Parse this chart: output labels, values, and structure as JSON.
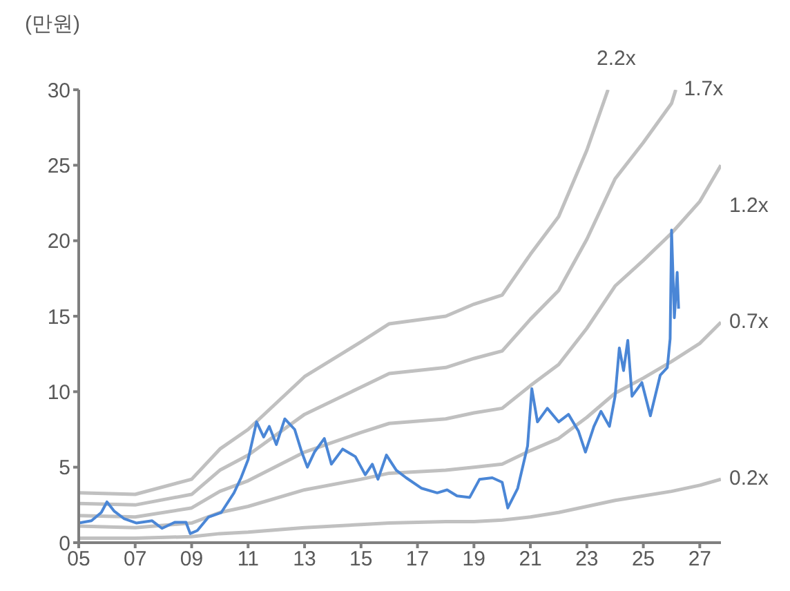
{
  "chart_data": {
    "type": "line",
    "ylabel": "(만원)",
    "xlim": [
      2005,
      2027.75
    ],
    "xticks": [
      {
        "value": 2005,
        "label": "05"
      },
      {
        "value": 2007,
        "label": "07"
      },
      {
        "value": 2009,
        "label": "09"
      },
      {
        "value": 2011,
        "label": "11"
      },
      {
        "value": 2013,
        "label": "13"
      },
      {
        "value": 2015,
        "label": "15"
      },
      {
        "value": 2017,
        "label": "17"
      },
      {
        "value": 2019,
        "label": "19"
      },
      {
        "value": 2021,
        "label": "21"
      },
      {
        "value": 2023,
        "label": "23"
      },
      {
        "value": 2025,
        "label": "25"
      },
      {
        "value": 2027,
        "label": "27"
      }
    ],
    "ylim": [
      0,
      30
    ],
    "yticks": [
      0,
      5,
      10,
      15,
      20,
      25,
      30
    ],
    "grid": false,
    "legend": false,
    "marker": "none",
    "line_style": "solid",
    "series": [
      {
        "name": "2.2x",
        "color": "#c0c0c0",
        "x": [
          2005,
          2007,
          2009,
          2010,
          2011,
          2013,
          2015,
          2016,
          2018,
          2019,
          2020,
          2021,
          2022,
          2023,
          2023.75
        ],
        "values": [
          3.3,
          3.2,
          4.2,
          6.2,
          7.5,
          11.0,
          13.3,
          14.5,
          15.0,
          15.8,
          16.4,
          19.1,
          21.6,
          26.0,
          30
        ]
      },
      {
        "name": "1.7x",
        "color": "#c0c0c0",
        "x": [
          2005,
          2007,
          2009,
          2010,
          2011,
          2013,
          2015,
          2016,
          2018,
          2019,
          2020,
          2021,
          2022,
          2023,
          2024,
          2025,
          2026,
          2026.15
        ],
        "values": [
          2.6,
          2.5,
          3.2,
          4.8,
          5.8,
          8.5,
          10.3,
          11.2,
          11.6,
          12.2,
          12.7,
          14.8,
          16.7,
          20.1,
          24.1,
          26.5,
          29.1,
          30
        ]
      },
      {
        "name": "1.2x",
        "color": "#c0c0c0",
        "x": [
          2005,
          2007,
          2009,
          2010,
          2011,
          2013,
          2015,
          2016,
          2018,
          2019,
          2020,
          2021,
          2022,
          2023,
          2024,
          2025,
          2026,
          2027,
          2027.75
        ],
        "values": [
          1.8,
          1.7,
          2.3,
          3.4,
          4.1,
          6.0,
          7.3,
          7.9,
          8.2,
          8.6,
          8.9,
          10.4,
          11.8,
          14.2,
          17.0,
          18.7,
          20.5,
          22.6,
          25.0
        ]
      },
      {
        "name": "0.7x",
        "color": "#c0c0c0",
        "x": [
          2005,
          2007,
          2009,
          2010,
          2011,
          2013,
          2015,
          2016,
          2018,
          2019,
          2020,
          2021,
          2022,
          2023,
          2024,
          2025,
          2026,
          2027,
          2027.75
        ],
        "values": [
          1.1,
          1.0,
          1.3,
          2.0,
          2.4,
          3.5,
          4.2,
          4.6,
          4.8,
          5.0,
          5.2,
          6.1,
          6.9,
          8.3,
          9.9,
          10.9,
          12.0,
          13.2,
          14.6
        ]
      },
      {
        "name": "0.2x",
        "color": "#c0c0c0",
        "x": [
          2005,
          2007,
          2009,
          2010,
          2011,
          2013,
          2015,
          2016,
          2018,
          2019,
          2020,
          2021,
          2022,
          2023,
          2024,
          2025,
          2026,
          2027,
          2027.75
        ],
        "values": [
          0.3,
          0.3,
          0.4,
          0.6,
          0.7,
          1.0,
          1.2,
          1.3,
          1.4,
          1.4,
          1.5,
          1.7,
          2.0,
          2.4,
          2.8,
          3.1,
          3.4,
          3.8,
          4.2
        ]
      },
      {
        "color": "#4a86d6",
        "x": [
          2005.0,
          2005.45,
          2005.8,
          2006.0,
          2006.25,
          2006.6,
          2007.05,
          2007.6,
          2007.95,
          2008.4,
          2008.8,
          2008.95,
          2009.2,
          2009.6,
          2010.05,
          2010.5,
          2010.75,
          2011.0,
          2011.3,
          2011.55,
          2011.75,
          2012.0,
          2012.3,
          2012.65,
          2012.9,
          2013.1,
          2013.35,
          2013.7,
          2013.95,
          2014.35,
          2014.8,
          2015.15,
          2015.4,
          2015.6,
          2015.9,
          2016.25,
          2016.6,
          2017.15,
          2017.7,
          2018.05,
          2018.4,
          2018.85,
          2019.2,
          2019.65,
          2020.0,
          2020.2,
          2020.55,
          2020.9,
          2021.05,
          2021.25,
          2021.6,
          2022.0,
          2022.35,
          2022.7,
          2022.95,
          2023.25,
          2023.5,
          2023.8,
          2024.0,
          2024.15,
          2024.3,
          2024.45,
          2024.6,
          2024.95,
          2025.25,
          2025.6,
          2025.85,
          2025.95,
          2026.0,
          2026.1,
          2026.2,
          2026.25
        ],
        "values": [
          1.3,
          1.45,
          2.0,
          2.7,
          2.1,
          1.6,
          1.3,
          1.45,
          0.95,
          1.35,
          1.35,
          0.6,
          0.8,
          1.7,
          2.0,
          3.3,
          4.3,
          5.5,
          8.0,
          7.0,
          7.7,
          6.5,
          8.2,
          7.5,
          6.0,
          5.0,
          6.0,
          6.9,
          5.2,
          6.2,
          5.7,
          4.5,
          5.2,
          4.2,
          5.8,
          4.8,
          4.3,
          3.6,
          3.3,
          3.5,
          3.1,
          3.0,
          4.2,
          4.3,
          4.0,
          2.3,
          3.6,
          6.4,
          10.2,
          8.0,
          8.9,
          8.0,
          8.5,
          7.4,
          6.0,
          7.7,
          8.7,
          7.7,
          9.7,
          12.9,
          11.4,
          13.4,
          9.7,
          10.6,
          8.4,
          11.1,
          11.6,
          13.5,
          20.7,
          14.9,
          17.9,
          15.5
        ]
      }
    ]
  }
}
